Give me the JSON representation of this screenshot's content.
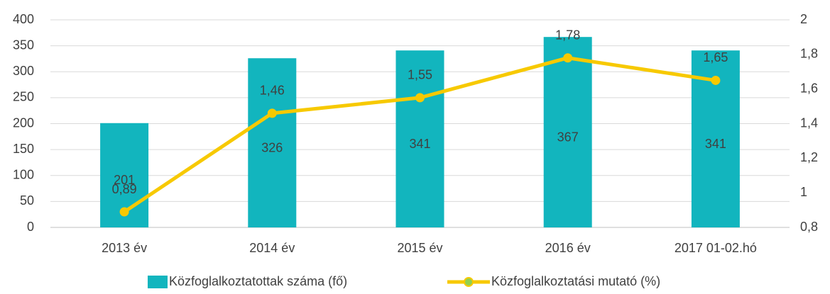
{
  "chart_data": {
    "type": "bar",
    "categories": [
      "2013 év",
      "2014 év",
      "2015 év",
      "2016 év",
      "2017 01-02.hó"
    ],
    "series": [
      {
        "name": "Közfoglalkoztatottak száma (fő)",
        "type": "bar",
        "color": "#12b5be",
        "values": [
          201,
          326,
          341,
          367,
          341
        ]
      },
      {
        "name": "Közfoglalkoztatási mutató (%)",
        "type": "line",
        "axis": "y2",
        "color": "#f7c900",
        "values": [
          0.89,
          1.46,
          1.55,
          1.78,
          1.65
        ],
        "value_labels": [
          "0,89",
          "1,46",
          "1,55",
          "1,78",
          "1,65"
        ]
      }
    ],
    "ylim": [
      0,
      400
    ],
    "yticks": [
      0,
      50,
      100,
      150,
      200,
      250,
      300,
      350,
      400
    ],
    "y2lim": [
      0.8,
      2
    ],
    "y2ticks": [
      {
        "value": 0.8,
        "label": "0,8"
      },
      1,
      {
        "value": 1.2,
        "label": "1,2"
      },
      {
        "value": 1.4,
        "label": "1,4"
      },
      {
        "value": 1.6,
        "label": "1,6"
      },
      {
        "value": 1.8,
        "label": "1,8"
      },
      2
    ],
    "grid": true,
    "legend": "bottom"
  }
}
